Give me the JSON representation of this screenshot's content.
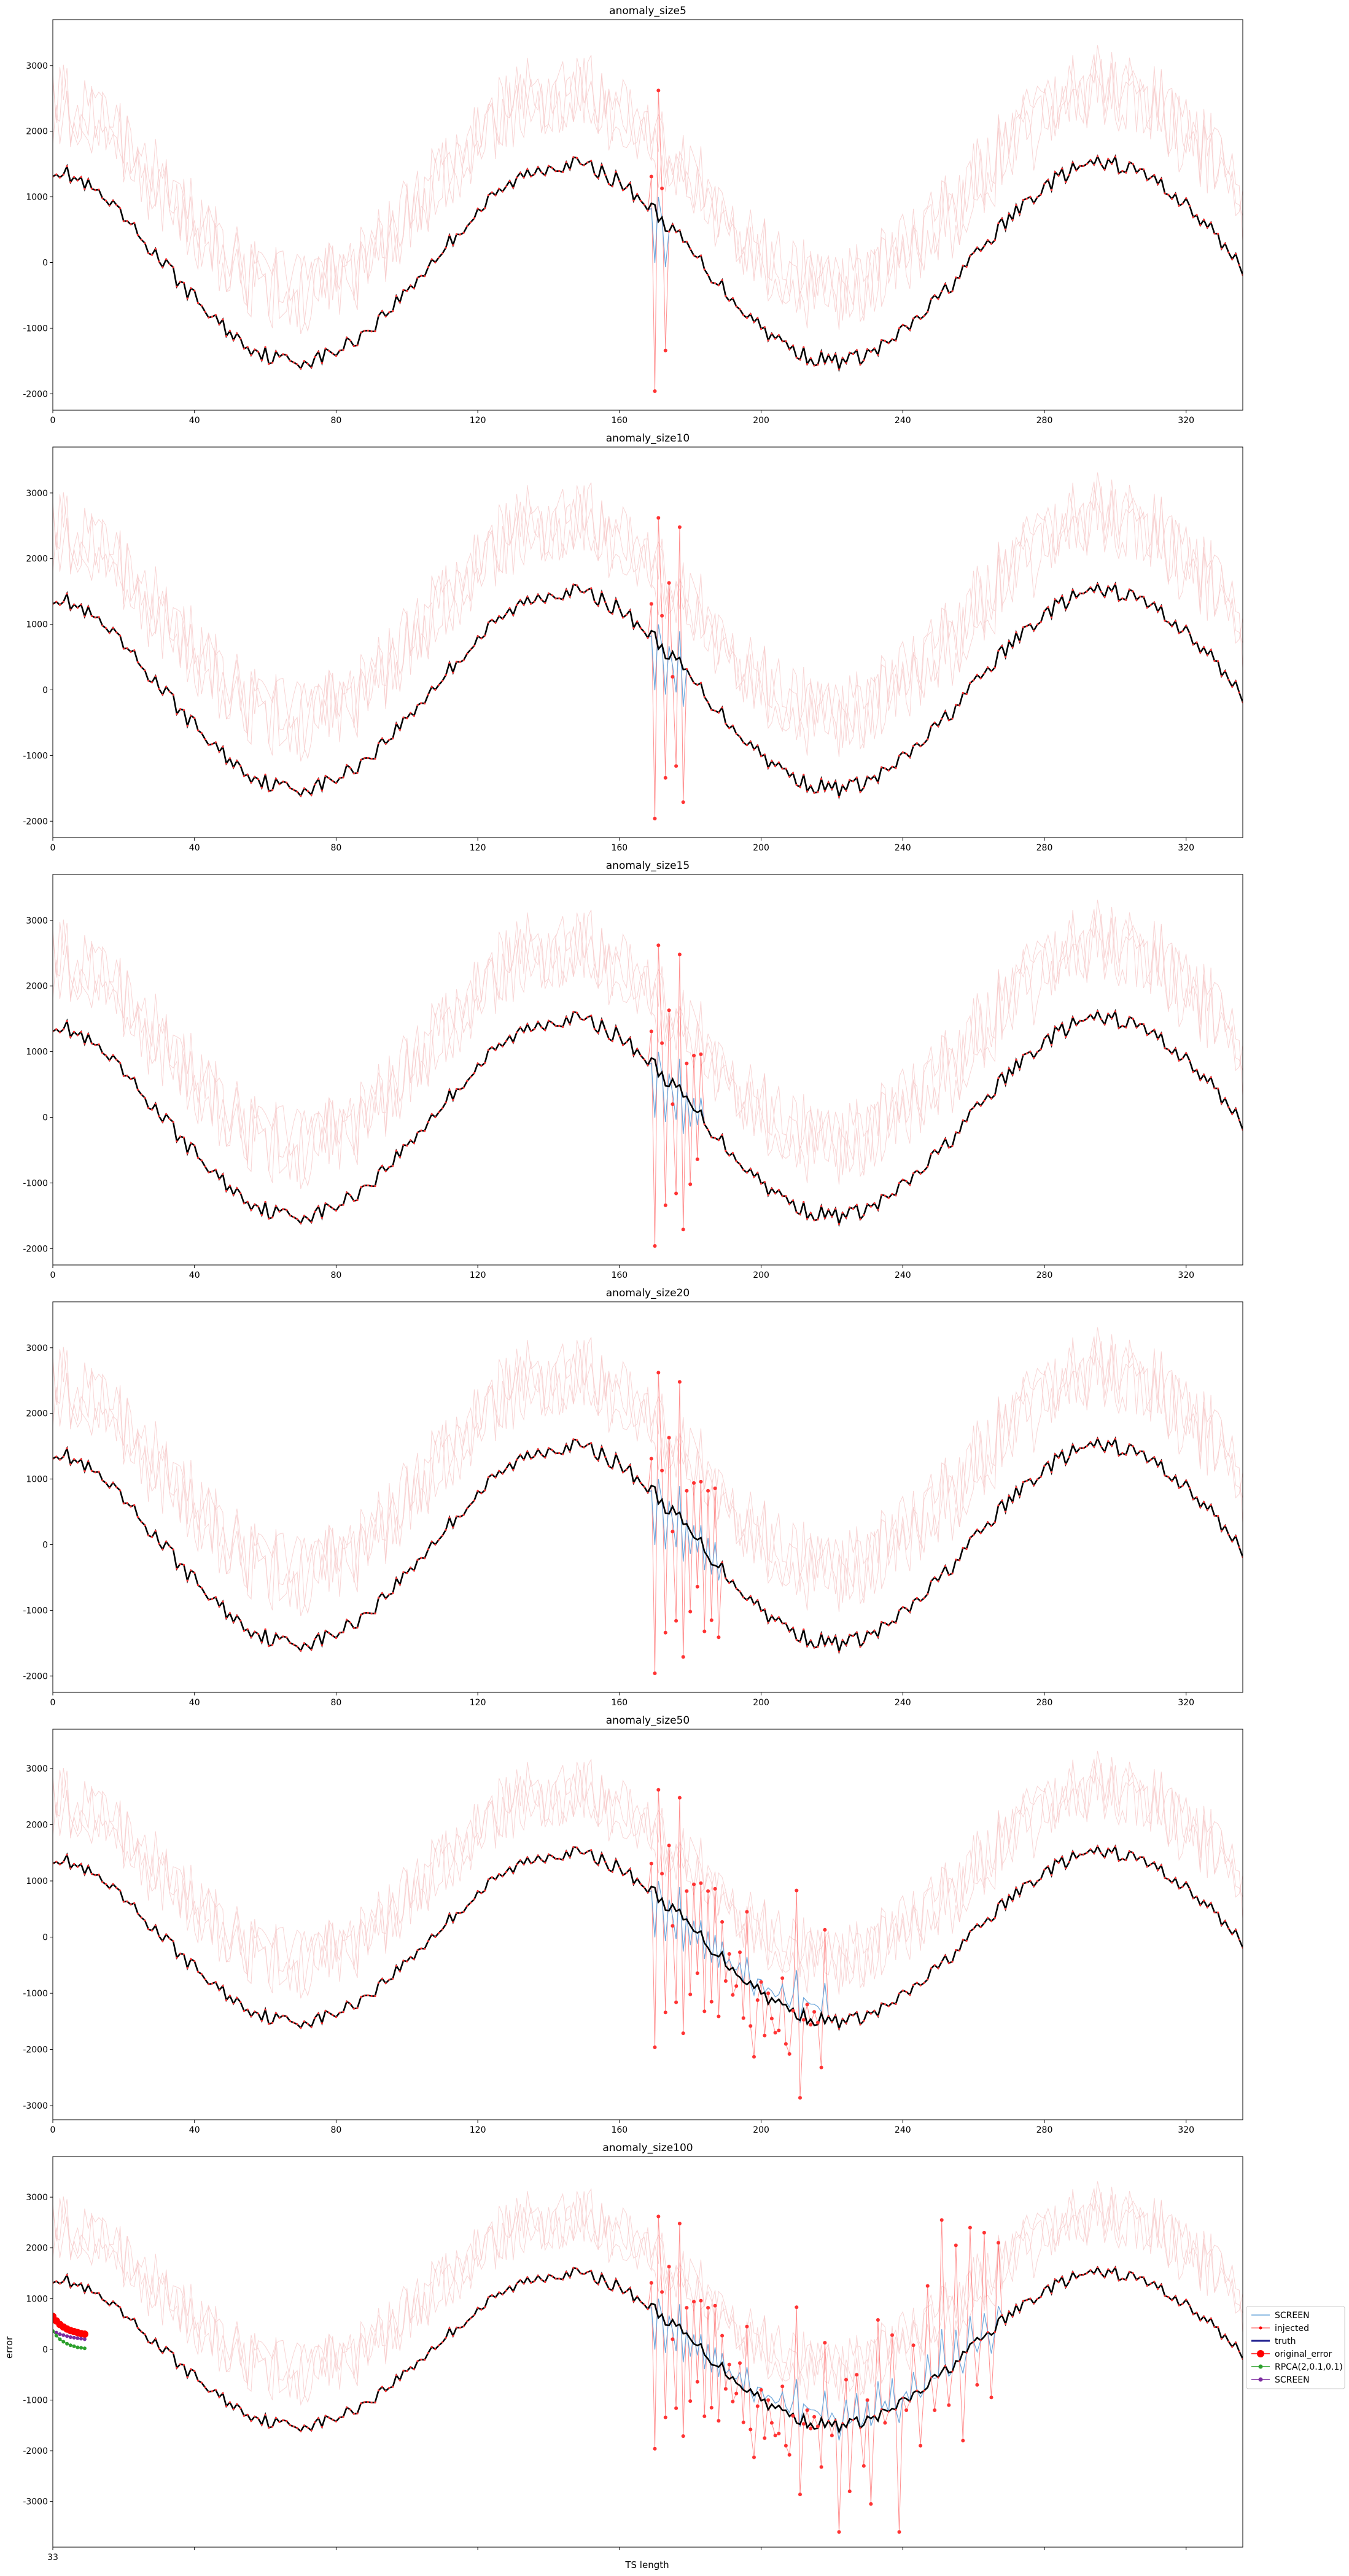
{
  "figure": {
    "xlabel": "TS length",
    "ylabel": "error",
    "last_panel_xtick": "33"
  },
  "legend": {
    "placement": "right of bottom panel",
    "entries": [
      {
        "label": "SCREEN",
        "style": "thin-line",
        "color": "#6fa8dc"
      },
      {
        "label": "injected",
        "style": "dot-line",
        "color": "#ff0000"
      },
      {
        "label": "truth",
        "style": "thick-line",
        "color": "#1f1f8f"
      },
      {
        "label": "original_error",
        "style": "big-dot-line",
        "color": "#ff0000"
      },
      {
        "label": "RPCA(2,0.1,0.1)",
        "style": "marker-line",
        "color": "#2ca02c"
      },
      {
        "label": "SCREEN",
        "style": "marker-line",
        "color": "#7b2a9e"
      }
    ]
  },
  "colors": {
    "screen": "#6fa8dc",
    "injected": "#ff3333",
    "truth": "#000000",
    "faint": "#f6c9c9",
    "original_error": "#ff0000",
    "rpca": "#2ca02c",
    "screen2": "#7b2a9e"
  },
  "chart_data": [
    {
      "type": "line",
      "title": "anomaly_size5",
      "anomaly_start": 171,
      "anomaly_len": 5,
      "xlim": [
        0,
        336
      ],
      "ylim": [
        -2250,
        3700
      ],
      "yticks": [
        -2000,
        -1000,
        0,
        1000,
        2000,
        3000
      ],
      "xticks": [
        0,
        40,
        80,
        120,
        160,
        200,
        240,
        280,
        320
      ],
      "injected": [
        [
          169,
          1310
        ],
        [
          170,
          -1960
        ],
        [
          171,
          2620
        ],
        [
          172,
          1130
        ],
        [
          173,
          -1340
        ]
      ]
    },
    {
      "type": "line",
      "title": "anomaly_size10",
      "anomaly_start": 171,
      "anomaly_len": 10,
      "xlim": [
        0,
        336
      ],
      "ylim": [
        -2250,
        3700
      ],
      "yticks": [
        -2000,
        -1000,
        0,
        1000,
        2000,
        3000
      ],
      "xticks": [
        0,
        40,
        80,
        120,
        160,
        200,
        240,
        280,
        320
      ],
      "injected": [
        [
          169,
          1310
        ],
        [
          170,
          -1960
        ],
        [
          171,
          2620
        ],
        [
          172,
          1130
        ],
        [
          173,
          -1340
        ],
        [
          174,
          1630
        ],
        [
          175,
          200
        ],
        [
          176,
          -1160
        ],
        [
          177,
          2480
        ],
        [
          178,
          -1710
        ]
      ]
    },
    {
      "type": "line",
      "title": "anomaly_size15",
      "anomaly_start": 171,
      "anomaly_len": 15,
      "xlim": [
        0,
        336
      ],
      "ylim": [
        -2250,
        3700
      ],
      "yticks": [
        -2000,
        -1000,
        0,
        1000,
        2000,
        3000
      ],
      "xticks": [
        0,
        40,
        80,
        120,
        160,
        200,
        240,
        280,
        320
      ],
      "injected": [
        [
          169,
          1310
        ],
        [
          170,
          -1960
        ],
        [
          171,
          2620
        ],
        [
          172,
          1130
        ],
        [
          173,
          -1340
        ],
        [
          174,
          1630
        ],
        [
          175,
          200
        ],
        [
          176,
          -1160
        ],
        [
          177,
          2480
        ],
        [
          178,
          -1710
        ],
        [
          179,
          820
        ],
        [
          180,
          -1020
        ],
        [
          181,
          940
        ],
        [
          182,
          -640
        ],
        [
          183,
          960
        ]
      ]
    },
    {
      "type": "line",
      "title": "anomaly_size20",
      "anomaly_start": 171,
      "anomaly_len": 20,
      "xlim": [
        0,
        336
      ],
      "ylim": [
        -2250,
        3700
      ],
      "yticks": [
        -2000,
        -1000,
        0,
        1000,
        2000,
        3000
      ],
      "xticks": [
        0,
        40,
        80,
        120,
        160,
        200,
        240,
        280,
        320
      ],
      "injected": [
        [
          169,
          1310
        ],
        [
          170,
          -1960
        ],
        [
          171,
          2620
        ],
        [
          172,
          1130
        ],
        [
          173,
          -1340
        ],
        [
          174,
          1630
        ],
        [
          175,
          200
        ],
        [
          176,
          -1160
        ],
        [
          177,
          2480
        ],
        [
          178,
          -1710
        ],
        [
          179,
          820
        ],
        [
          180,
          -1020
        ],
        [
          181,
          940
        ],
        [
          182,
          -640
        ],
        [
          183,
          960
        ],
        [
          184,
          -1320
        ],
        [
          185,
          820
        ],
        [
          186,
          -1150
        ],
        [
          187,
          860
        ],
        [
          188,
          -1410
        ]
      ]
    },
    {
      "type": "line",
      "title": "anomaly_size50",
      "anomaly_start": 171,
      "anomaly_len": 50,
      "xlim": [
        0,
        336
      ],
      "ylim": [
        -3250,
        3700
      ],
      "yticks": [
        -3000,
        -2000,
        -1000,
        0,
        1000,
        2000,
        3000
      ],
      "xticks": [
        0,
        40,
        80,
        120,
        160,
        200,
        240,
        280,
        320
      ],
      "injected": [
        [
          169,
          1310
        ],
        [
          170,
          -1960
        ],
        [
          171,
          2620
        ],
        [
          172,
          1130
        ],
        [
          173,
          -1340
        ],
        [
          174,
          1630
        ],
        [
          175,
          200
        ],
        [
          176,
          -1160
        ],
        [
          177,
          2480
        ],
        [
          178,
          -1710
        ],
        [
          179,
          820
        ],
        [
          180,
          -1020
        ],
        [
          181,
          940
        ],
        [
          182,
          -640
        ],
        [
          183,
          960
        ],
        [
          184,
          -1320
        ],
        [
          185,
          820
        ],
        [
          186,
          -1150
        ],
        [
          187,
          860
        ],
        [
          188,
          -1410
        ],
        [
          189,
          270
        ],
        [
          190,
          -780
        ],
        [
          191,
          -300
        ],
        [
          192,
          -1030
        ],
        [
          193,
          -870
        ],
        [
          194,
          -270
        ],
        [
          195,
          -1440
        ],
        [
          196,
          450
        ],
        [
          197,
          -1580
        ],
        [
          198,
          -2130
        ],
        [
          199,
          -1120
        ],
        [
          200,
          -800
        ],
        [
          201,
          -1750
        ],
        [
          202,
          -1000
        ],
        [
          203,
          -1450
        ],
        [
          204,
          -1700
        ],
        [
          205,
          -1660
        ],
        [
          206,
          -730
        ],
        [
          207,
          -1900
        ],
        [
          208,
          -2080
        ],
        [
          209,
          -1310
        ],
        [
          210,
          830
        ],
        [
          211,
          -2860
        ],
        [
          212,
          -1470
        ],
        [
          213,
          -1200
        ],
        [
          214,
          -1560
        ],
        [
          215,
          -1330
        ],
        [
          216,
          -1520
        ],
        [
          217,
          -2320
        ],
        [
          218,
          130
        ]
      ]
    },
    {
      "type": "line",
      "title": "anomaly_size100",
      "anomaly_start": 171,
      "anomaly_len": 100,
      "xlim": [
        0,
        336
      ],
      "ylim": [
        -3900,
        3800
      ],
      "yticks": [
        -3000,
        -2000,
        -1000,
        0,
        1000,
        2000,
        3000
      ],
      "xticks": [],
      "injected": [
        [
          169,
          1310
        ],
        [
          170,
          -1960
        ],
        [
          171,
          2620
        ],
        [
          172,
          1130
        ],
        [
          173,
          -1340
        ],
        [
          174,
          1630
        ],
        [
          175,
          200
        ],
        [
          176,
          -1160
        ],
        [
          177,
          2480
        ],
        [
          178,
          -1710
        ],
        [
          179,
          820
        ],
        [
          180,
          -1020
        ],
        [
          181,
          940
        ],
        [
          182,
          -640
        ],
        [
          183,
          960
        ],
        [
          184,
          -1320
        ],
        [
          185,
          820
        ],
        [
          186,
          -1150
        ],
        [
          187,
          860
        ],
        [
          188,
          -1410
        ],
        [
          189,
          270
        ],
        [
          190,
          -780
        ],
        [
          191,
          -300
        ],
        [
          192,
          -1030
        ],
        [
          193,
          -870
        ],
        [
          194,
          -270
        ],
        [
          195,
          -1440
        ],
        [
          196,
          450
        ],
        [
          197,
          -1580
        ],
        [
          198,
          -2130
        ],
        [
          199,
          -1120
        ],
        [
          200,
          -800
        ],
        [
          201,
          -1750
        ],
        [
          202,
          -1000
        ],
        [
          203,
          -1450
        ],
        [
          204,
          -1700
        ],
        [
          205,
          -1660
        ],
        [
          206,
          -730
        ],
        [
          207,
          -1900
        ],
        [
          208,
          -2080
        ],
        [
          209,
          -1310
        ],
        [
          210,
          830
        ],
        [
          211,
          -2860
        ],
        [
          212,
          -1470
        ],
        [
          213,
          -1200
        ],
        [
          214,
          -1560
        ],
        [
          215,
          -1330
        ],
        [
          216,
          -1520
        ],
        [
          217,
          -2320
        ],
        [
          218,
          130
        ],
        [
          220,
          -1700
        ],
        [
          222,
          -3600
        ],
        [
          224,
          -600
        ],
        [
          225,
          -2800
        ],
        [
          227,
          -500
        ],
        [
          229,
          -2300
        ],
        [
          230,
          -1000
        ],
        [
          231,
          -3050
        ],
        [
          233,
          580
        ],
        [
          235,
          -1450
        ],
        [
          237,
          280
        ],
        [
          239,
          -3600
        ],
        [
          241,
          -1200
        ],
        [
          243,
          80
        ],
        [
          245,
          -1900
        ],
        [
          247,
          1250
        ],
        [
          249,
          -1200
        ],
        [
          251,
          2550
        ],
        [
          253,
          -1100
        ],
        [
          255,
          2050
        ],
        [
          257,
          -1800
        ],
        [
          259,
          2400
        ],
        [
          261,
          -700
        ],
        [
          263,
          2300
        ],
        [
          265,
          -950
        ],
        [
          267,
          2100
        ]
      ],
      "original_error": [
        [
          0,
          650
        ],
        [
          1,
          560
        ],
        [
          2,
          490
        ],
        [
          3,
          440
        ],
        [
          4,
          400
        ],
        [
          5,
          370
        ],
        [
          6,
          350
        ],
        [
          7,
          330
        ],
        [
          8,
          310
        ],
        [
          9,
          300
        ]
      ],
      "rpca": [
        [
          0,
          360
        ],
        [
          1,
          270
        ],
        [
          2,
          200
        ],
        [
          3,
          150
        ],
        [
          4,
          110
        ],
        [
          5,
          80
        ],
        [
          6,
          60
        ],
        [
          7,
          40
        ],
        [
          8,
          30
        ],
        [
          9,
          20
        ]
      ],
      "screen_err": [
        [
          0,
          360
        ],
        [
          1,
          330
        ],
        [
          2,
          300
        ],
        [
          3,
          280
        ],
        [
          4,
          260
        ],
        [
          5,
          240
        ],
        [
          6,
          230
        ],
        [
          7,
          220
        ],
        [
          8,
          210
        ],
        [
          9,
          200
        ]
      ]
    }
  ]
}
